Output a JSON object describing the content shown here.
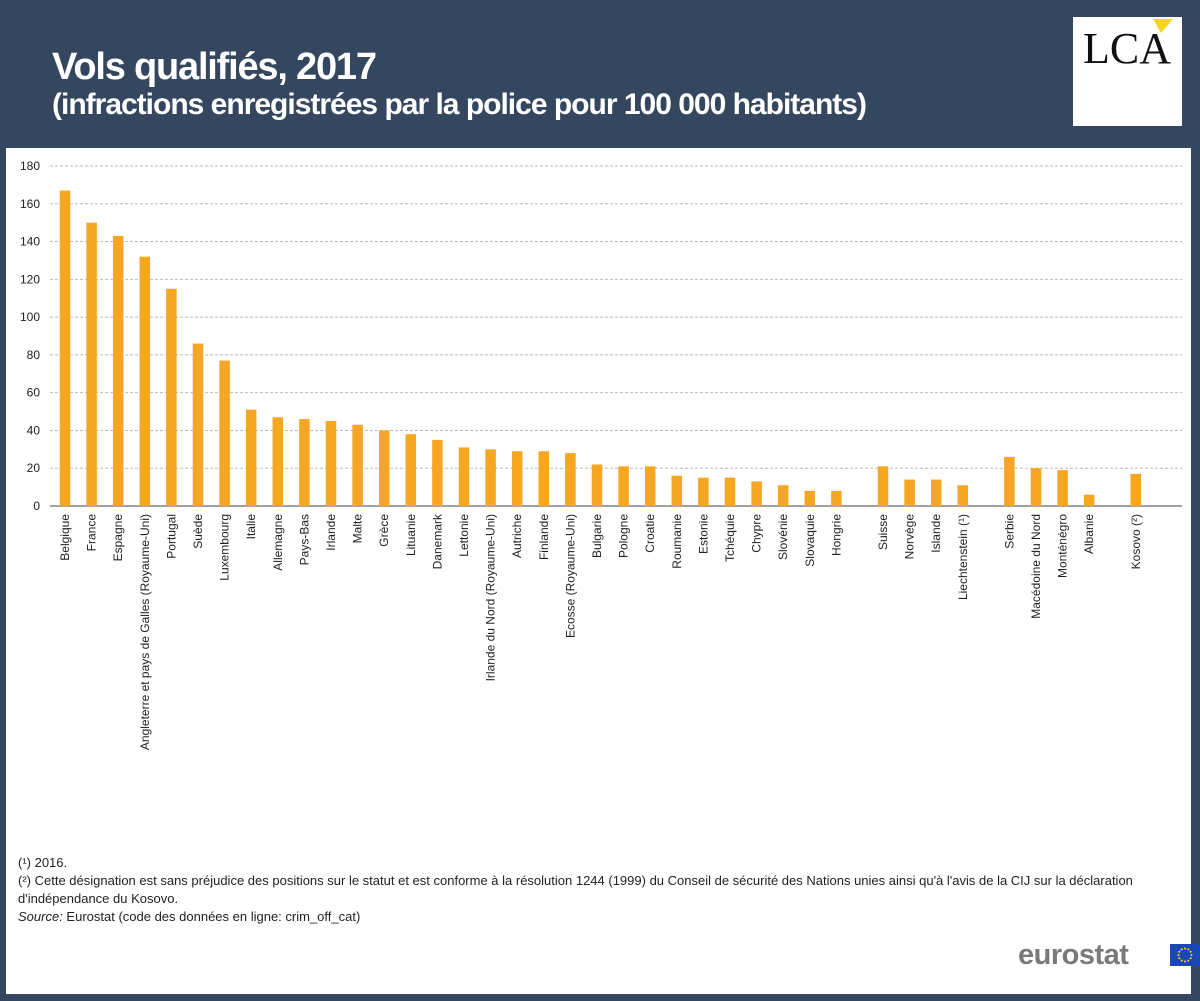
{
  "header": {
    "title": "Vols qualifiés, 2017",
    "subtitle": "(infractions enregistrées par la police pour 100 000 habitants)",
    "logo_text": "LCA"
  },
  "colors": {
    "background": "#34475f",
    "bar": "#f5a623",
    "grid": "#bbbbbb",
    "flag_blue": "#1a47b8",
    "flag_star": "#ffdd00"
  },
  "chart_data": {
    "type": "bar",
    "title": "",
    "xlabel": "",
    "ylabel": "",
    "ylim": [
      0,
      180
    ],
    "yticks": [
      0,
      20,
      40,
      60,
      80,
      100,
      120,
      140,
      160,
      180
    ],
    "grid": true,
    "groups": [
      [
        {
          "label": "Belgique",
          "value": 167
        },
        {
          "label": "France",
          "value": 150
        },
        {
          "label": "Espagne",
          "value": 143
        },
        {
          "label": "Angleterre et pays de Galles (Royaume-Uni)",
          "value": 132
        },
        {
          "label": "Portugal",
          "value": 115
        },
        {
          "label": "Suède",
          "value": 86
        },
        {
          "label": "Luxembourg",
          "value": 77
        },
        {
          "label": "Italie",
          "value": 51
        },
        {
          "label": "Allemagne",
          "value": 47
        },
        {
          "label": "Pays-Bas",
          "value": 46
        },
        {
          "label": "Irlande",
          "value": 45
        },
        {
          "label": "Malte",
          "value": 43
        },
        {
          "label": "Grèce",
          "value": 40
        },
        {
          "label": "Lituanie",
          "value": 38
        },
        {
          "label": "Danemark",
          "value": 35
        },
        {
          "label": "Lettonie",
          "value": 31
        },
        {
          "label": "Irlande du Nord (Royaume-Uni)",
          "value": 30
        },
        {
          "label": "Autriche",
          "value": 29
        },
        {
          "label": "Finlande",
          "value": 29
        },
        {
          "label": "Ecosse (Royaume-Uni)",
          "value": 28
        },
        {
          "label": "Bulgarie",
          "value": 22
        },
        {
          "label": "Pologne",
          "value": 21
        },
        {
          "label": "Croatie",
          "value": 21
        },
        {
          "label": "Roumanie",
          "value": 16
        },
        {
          "label": "Estonie",
          "value": 15
        },
        {
          "label": "Tchéquie",
          "value": 15
        },
        {
          "label": "Chypre",
          "value": 13
        },
        {
          "label": "Slovénie",
          "value": 11
        },
        {
          "label": "Slovaquie",
          "value": 8
        },
        {
          "label": "Hongrie",
          "value": 8
        }
      ],
      [
        {
          "label": "Suisse",
          "value": 21
        },
        {
          "label": "Norvège",
          "value": 14
        },
        {
          "label": "Islande",
          "value": 14
        },
        {
          "label": "Liechtenstein (¹)",
          "value": 11
        }
      ],
      [
        {
          "label": "Serbie",
          "value": 26
        },
        {
          "label": "Macédoine du Nord",
          "value": 20
        },
        {
          "label": "Monténégro",
          "value": 19
        },
        {
          "label": "Albanie",
          "value": 6
        }
      ],
      [
        {
          "label": "Kosovo (²)",
          "value": 17
        }
      ]
    ]
  },
  "notes": {
    "note1": "(¹)  2016.",
    "note2": "(²) Cette désignation est sans préjudice des positions sur le statut et est conforme à la résolution 1244 (1999) du Conseil de sécurité des Nations unies ainsi qu'à l'avis de la CIJ sur la déclaration d'indépendance du Kosovo.",
    "source_label": "Source:",
    "source_text": " Eurostat (code des données en ligne: crim_off_cat)"
  },
  "footer": {
    "brand": "eurostat",
    "flag_icon": "eu-flag-icon"
  }
}
